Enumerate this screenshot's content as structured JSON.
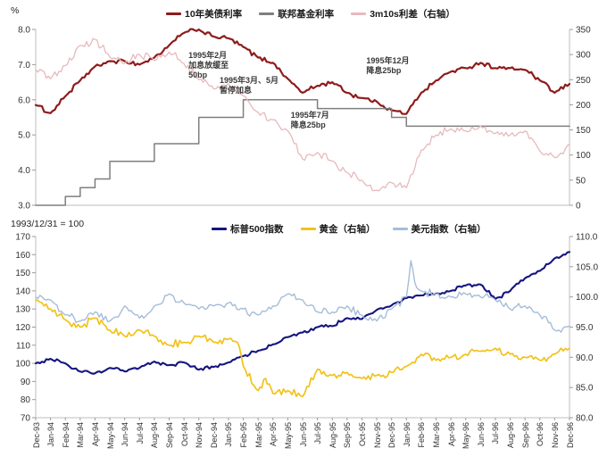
{
  "months": [
    "Dec-93",
    "Jan-94",
    "Feb-94",
    "Mar-94",
    "Apr-94",
    "May-94",
    "Jun-94",
    "Jul-94",
    "Aug-94",
    "Sep-94",
    "Oct-94",
    "Nov-94",
    "Dec-94",
    "Jan-95",
    "Feb-95",
    "Mar-95",
    "Apr-95",
    "May-95",
    "Jun-95",
    "Jul-95",
    "Aug-95",
    "Sep-95",
    "Oct-95",
    "Nov-95",
    "Dec-95",
    "Jan-96",
    "Feb-96",
    "Mar-96",
    "Apr-96",
    "May-96",
    "Jun-96",
    "Jul-96",
    "Aug-96",
    "Sep-96",
    "Oct-96",
    "Nov-96",
    "Dec-96"
  ],
  "chart_data": [
    {
      "type": "line",
      "panel": "top",
      "categories": "months",
      "left_axis": {
        "label": "%",
        "min": 3,
        "max": 8,
        "tick_values": [
          3,
          4,
          5,
          6,
          7,
          8
        ],
        "ticks": [
          "3.0",
          "4.0",
          "5.0",
          "6.0",
          "7.0",
          "8.0"
        ]
      },
      "right_axis": {
        "min": 0,
        "max": 350,
        "tick_values": [
          0,
          50,
          100,
          150,
          200,
          250,
          300,
          350
        ],
        "ticks": [
          "0",
          "50",
          "100",
          "150",
          "200",
          "250",
          "300",
          "350"
        ]
      },
      "grid": false,
      "legend_position": "top-center",
      "series": [
        {
          "name": "10年美债利率",
          "color": "#8e1c1c",
          "axis": "left",
          "type": "line",
          "width": 2.2,
          "noise": 0.07,
          "points": [
            [
              0,
              5.85
            ],
            [
              1,
              5.62
            ],
            [
              2,
              6.1
            ],
            [
              3,
              6.55
            ],
            [
              4,
              6.95
            ],
            [
              5,
              7.1
            ],
            [
              6,
              7.1
            ],
            [
              7,
              7.0
            ],
            [
              8,
              7.2
            ],
            [
              9,
              7.55
            ],
            [
              10,
              7.9
            ],
            [
              11,
              8.0
            ],
            [
              12,
              7.8
            ],
            [
              13,
              7.75
            ],
            [
              14,
              7.5
            ],
            [
              15,
              7.2
            ],
            [
              16,
              7.05
            ],
            [
              17,
              6.6
            ],
            [
              18,
              6.2
            ],
            [
              19,
              6.4
            ],
            [
              20,
              6.5
            ],
            [
              21,
              6.2
            ],
            [
              22,
              6.05
            ],
            [
              23,
              5.95
            ],
            [
              24,
              5.7
            ],
            [
              25,
              5.6
            ],
            [
              26,
              6.2
            ],
            [
              27,
              6.55
            ],
            [
              28,
              6.8
            ],
            [
              29,
              6.9
            ],
            [
              30,
              7.05
            ],
            [
              31,
              6.9
            ],
            [
              32,
              6.9
            ],
            [
              33,
              6.85
            ],
            [
              34,
              6.55
            ],
            [
              35,
              6.2
            ],
            [
              36,
              6.45
            ]
          ]
        },
        {
          "name": "联邦基金利率",
          "color": "#7f7f7f",
          "axis": "left",
          "type": "step",
          "width": 1.5,
          "noise": 0,
          "points": [
            [
              0,
              3.0
            ],
            [
              2,
              3.25
            ],
            [
              3,
              3.5
            ],
            [
              4,
              3.75
            ],
            [
              5,
              4.25
            ],
            [
              8,
              4.75
            ],
            [
              11,
              5.5
            ],
            [
              14,
              6.0
            ],
            [
              19,
              5.75
            ],
            [
              24,
              5.5
            ],
            [
              25,
              5.25
            ],
            [
              36,
              5.25
            ]
          ]
        },
        {
          "name": "3m10s利差（右轴）",
          "color": "#e8b9bc",
          "axis": "right",
          "type": "line",
          "width": 1.3,
          "noise": 9,
          "points": [
            [
              0,
              270
            ],
            [
              1,
              252
            ],
            [
              2,
              278
            ],
            [
              3,
              318
            ],
            [
              4,
              330
            ],
            [
              5,
              295
            ],
            [
              6,
              282
            ],
            [
              7,
              300
            ],
            [
              8,
              288
            ],
            [
              9,
              305
            ],
            [
              10,
              282
            ],
            [
              11,
              250
            ],
            [
              12,
              232
            ],
            [
              13,
              242
            ],
            [
              14,
              218
            ],
            [
              15,
              185
            ],
            [
              16,
              170
            ],
            [
              17,
              148
            ],
            [
              18,
              92
            ],
            [
              19,
              105
            ],
            [
              20,
              88
            ],
            [
              21,
              65
            ],
            [
              22,
              50
            ],
            [
              23,
              30
            ],
            [
              24,
              45
            ],
            [
              25,
              35
            ],
            [
              26,
              110
            ],
            [
              27,
              140
            ],
            [
              28,
              152
            ],
            [
              29,
              148
            ],
            [
              30,
              158
            ],
            [
              31,
              143
            ],
            [
              32,
              140
            ],
            [
              33,
              148
            ],
            [
              34,
              108
            ],
            [
              35,
              95
            ],
            [
              36,
              122
            ]
          ]
        }
      ],
      "annotations": [
        {
          "lines": [
            "1995年2月",
            "加息放缓至",
            "50bp"
          ],
          "x": 10.3,
          "y": 7.4
        },
        {
          "lines": [
            "1995年3月、5月",
            "暂停加息"
          ],
          "x": 12.4,
          "y": 6.68
        },
        {
          "lines": [
            "1995年7月",
            "降息25bp"
          ],
          "x": 17.2,
          "y": 5.69
        },
        {
          "lines": [
            "1995年12月",
            "降息25bp"
          ],
          "x": 22.3,
          "y": 7.25
        }
      ]
    },
    {
      "type": "line",
      "panel": "bottom",
      "categories": "months",
      "note": "1993/12/31 = 100",
      "left_axis": {
        "min": 70,
        "max": 170,
        "tick_values": [
          70,
          80,
          90,
          100,
          110,
          120,
          130,
          140,
          150,
          160,
          170
        ],
        "ticks": [
          "70",
          "80",
          "90",
          "100",
          "110",
          "120",
          "130",
          "140",
          "150",
          "160",
          "170"
        ]
      },
      "right_axis": {
        "min": 80,
        "max": 110,
        "tick_values": [
          80,
          85,
          90,
          95,
          100,
          105,
          110
        ],
        "ticks": [
          "80.0",
          "85.0",
          "90.0",
          "95.0",
          "100.0",
          "105.0",
          "110.0"
        ]
      },
      "grid": false,
      "legend_position": "top-center",
      "series": [
        {
          "name": "标普500指数",
          "color": "#15157f",
          "axis": "left",
          "type": "line",
          "width": 2.1,
          "noise": 1.1,
          "points": [
            [
              0,
              100
            ],
            [
              1,
              102.5
            ],
            [
              2,
              100
            ],
            [
              3,
              95.5
            ],
            [
              4,
              94.5
            ],
            [
              5,
              97.5
            ],
            [
              6,
              95.5
            ],
            [
              7,
              97.5
            ],
            [
              8,
              101
            ],
            [
              9,
              99
            ],
            [
              10,
              100.5
            ],
            [
              11,
              96.5
            ],
            [
              12,
              98
            ],
            [
              13,
              100.5
            ],
            [
              14,
              104
            ],
            [
              15,
              107
            ],
            [
              16,
              110.5
            ],
            [
              17,
              114.5
            ],
            [
              18,
              117
            ],
            [
              19,
              120
            ],
            [
              20,
              120.5
            ],
            [
              21,
              125
            ],
            [
              22,
              124.5
            ],
            [
              23,
              129.5
            ],
            [
              24,
              132
            ],
            [
              25,
              136
            ],
            [
              26,
              137.5
            ],
            [
              27,
              138.5
            ],
            [
              28,
              140
            ],
            [
              29,
              143
            ],
            [
              30,
              143.5
            ],
            [
              31,
              135.5
            ],
            [
              32,
              140
            ],
            [
              33,
              147
            ],
            [
              34,
              151
            ],
            [
              35,
              158
            ],
            [
              36,
              161.5
            ]
          ]
        },
        {
          "name": "黄金（右轴）",
          "color": "#f2c21a",
          "axis": "right",
          "type": "line",
          "width": 1.7,
          "noise": 0.7,
          "points": [
            [
              0,
              99.5
            ],
            [
              1,
              98
            ],
            [
              2,
              96.2
            ],
            [
              3,
              95
            ],
            [
              4,
              96.5
            ],
            [
              5,
              94.5
            ],
            [
              6,
              93.5
            ],
            [
              7,
              94.5
            ],
            [
              8,
              93.5
            ],
            [
              9,
              92
            ],
            [
              10,
              92.5
            ],
            [
              11,
              93.5
            ],
            [
              12,
              92.5
            ],
            [
              13,
              93
            ],
            [
              13.6,
              92.5
            ],
            [
              14,
              88.5
            ],
            [
              15,
              84.5
            ],
            [
              15.5,
              86.5
            ],
            [
              16,
              84
            ],
            [
              17,
              84.5
            ],
            [
              18,
              83.5
            ],
            [
              19,
              88
            ],
            [
              20,
              87
            ],
            [
              21,
              87.5
            ],
            [
              22,
              86.5
            ],
            [
              23,
              87
            ],
            [
              24,
              87.5
            ],
            [
              25,
              88.5
            ],
            [
              26,
              90.5
            ],
            [
              27,
              89.5
            ],
            [
              28,
              90
            ],
            [
              29,
              90.5
            ],
            [
              30,
              91
            ],
            [
              31,
              91.5
            ],
            [
              32,
              90.5
            ],
            [
              33,
              90
            ],
            [
              34,
              89.5
            ],
            [
              35,
              90.5
            ],
            [
              36,
              91.5
            ]
          ]
        },
        {
          "name": "美元指数（右轴）",
          "color": "#a5bdd8",
          "axis": "right",
          "type": "line",
          "width": 1.4,
          "noise": 0.8,
          "points": [
            [
              0,
              100
            ],
            [
              1,
              99.5
            ],
            [
              2,
              97
            ],
            [
              3,
              96
            ],
            [
              4,
              97.5
            ],
            [
              5,
              96
            ],
            [
              6,
              98.5
            ],
            [
              7,
              96.5
            ],
            [
              8,
              98.5
            ],
            [
              9,
              100.5
            ],
            [
              10,
              99
            ],
            [
              11,
              98
            ],
            [
              12,
              98.5
            ],
            [
              13,
              99
            ],
            [
              14,
              98
            ],
            [
              15,
              97
            ],
            [
              16,
              98.5
            ],
            [
              17,
              100.5
            ],
            [
              18,
              99.5
            ],
            [
              19,
              97.5
            ],
            [
              20,
              97.5
            ],
            [
              21,
              98.5
            ],
            [
              22,
              97
            ],
            [
              23,
              96
            ],
            [
              24,
              98
            ],
            [
              25,
              100
            ],
            [
              25.3,
              106
            ],
            [
              25.7,
              101.5
            ],
            [
              26,
              101
            ],
            [
              27,
              100.5
            ],
            [
              28,
              100
            ],
            [
              29,
              100.5
            ],
            [
              30,
              100
            ],
            [
              31,
              99.5
            ],
            [
              32,
              98
            ],
            [
              33,
              98.5
            ],
            [
              34,
              97
            ],
            [
              35,
              94.5
            ],
            [
              36,
              95.2
            ]
          ]
        }
      ],
      "annotations": []
    }
  ]
}
